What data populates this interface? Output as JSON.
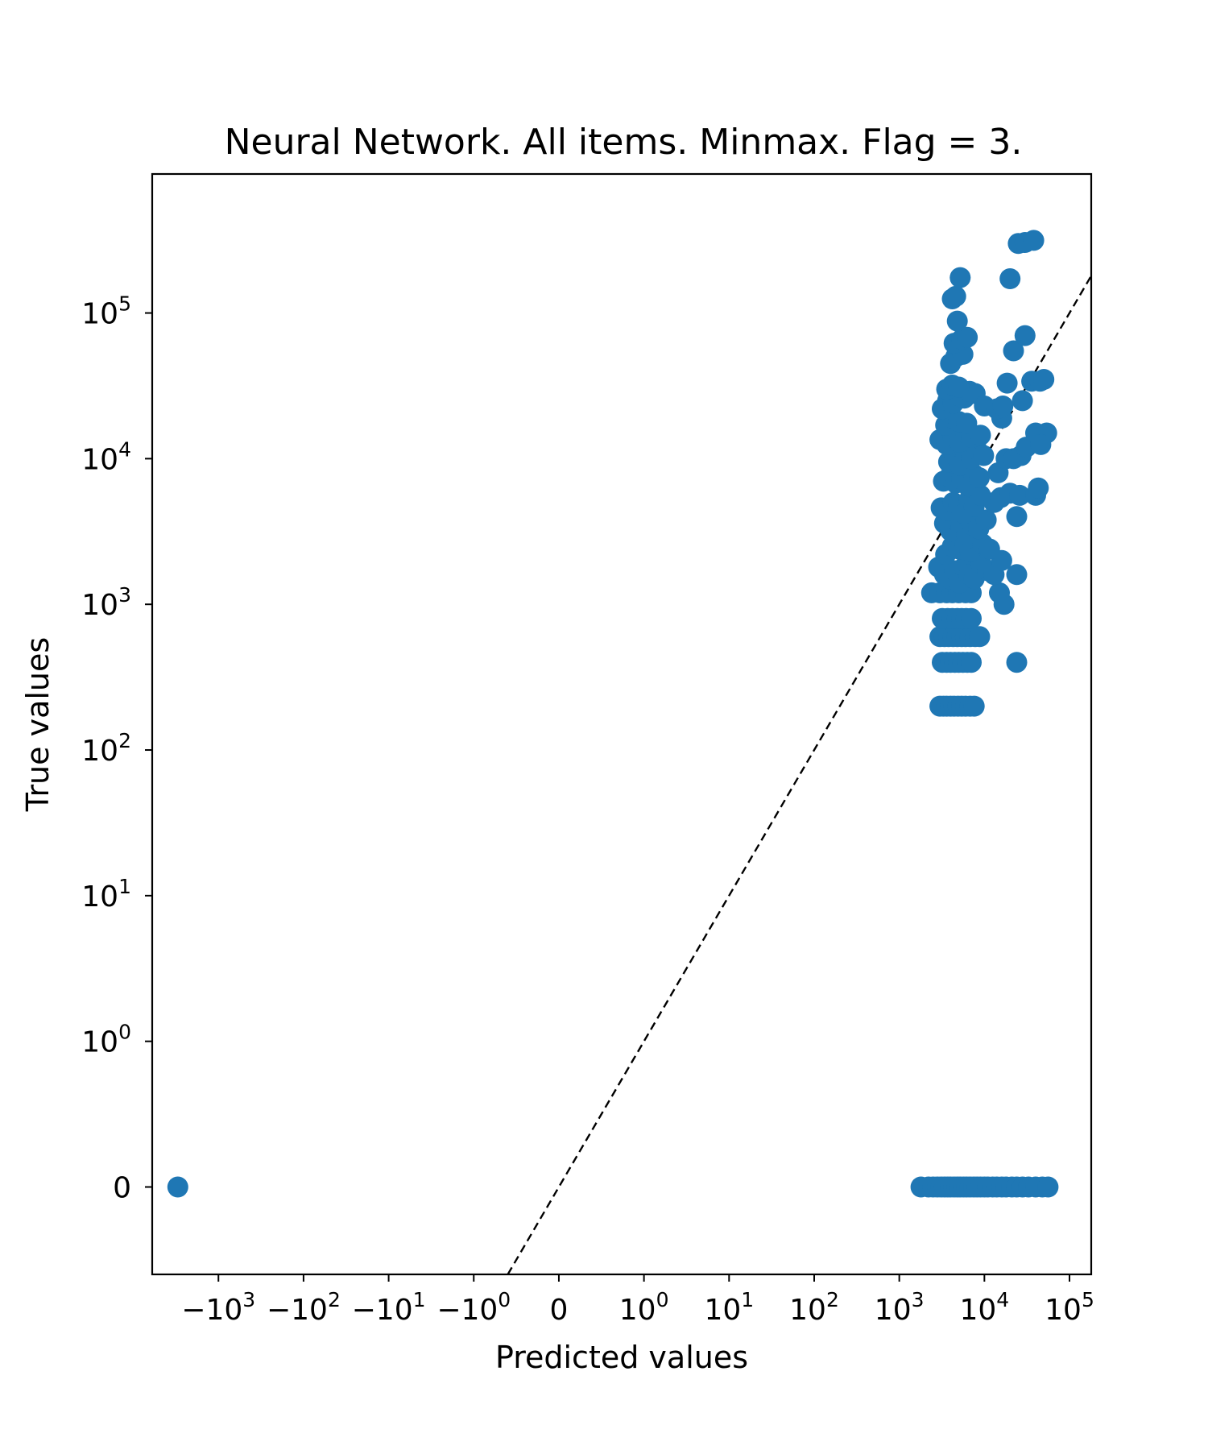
{
  "chart_data": {
    "type": "scatter",
    "title": "Neural Network. All items. Minmax. Flag = 3.",
    "xlabel": "Predicted values",
    "ylabel": "True values",
    "x_scale": "symlog",
    "y_scale": "symlog",
    "xlim": [
      -6000,
      180000
    ],
    "ylim": [
      -0.6,
      900000
    ],
    "grid": false,
    "legend": "none",
    "reference_line": "y = x (dashed)",
    "marker_color": "#1f77b4",
    "x_ticks": [
      {
        "base": "−10",
        "exp": "3",
        "value": -1000
      },
      {
        "base": "−10",
        "exp": "2",
        "value": -100
      },
      {
        "base": "−10",
        "exp": "1",
        "value": -10
      },
      {
        "base": "−10",
        "exp": "0",
        "value": -1
      },
      {
        "base": "0",
        "exp": "",
        "value": 0
      },
      {
        "base": "10",
        "exp": "0",
        "value": 1
      },
      {
        "base": "10",
        "exp": "1",
        "value": 10
      },
      {
        "base": "10",
        "exp": "2",
        "value": 100
      },
      {
        "base": "10",
        "exp": "3",
        "value": 1000
      },
      {
        "base": "10",
        "exp": "4",
        "value": 10000
      },
      {
        "base": "10",
        "exp": "5",
        "value": 100000
      }
    ],
    "y_ticks": [
      {
        "base": "0",
        "exp": "",
        "value": 0
      },
      {
        "base": "10",
        "exp": "0",
        "value": 1
      },
      {
        "base": "10",
        "exp": "1",
        "value": 10
      },
      {
        "base": "10",
        "exp": "2",
        "value": 100
      },
      {
        "base": "10",
        "exp": "3",
        "value": 1000
      },
      {
        "base": "10",
        "exp": "4",
        "value": 10000
      },
      {
        "base": "10",
        "exp": "5",
        "value": 100000
      }
    ],
    "points": [
      [
        -3000,
        0
      ],
      [
        1800,
        0
      ],
      [
        2200,
        0
      ],
      [
        2500,
        0
      ],
      [
        2800,
        0
      ],
      [
        3100,
        0
      ],
      [
        3400,
        0
      ],
      [
        3700,
        0
      ],
      [
        4000,
        0
      ],
      [
        4400,
        0
      ],
      [
        4800,
        0
      ],
      [
        5200,
        0
      ],
      [
        5700,
        0
      ],
      [
        6200,
        0
      ],
      [
        6800,
        0
      ],
      [
        7500,
        0
      ],
      [
        8200,
        0
      ],
      [
        9000,
        0
      ],
      [
        10000,
        0
      ],
      [
        11000,
        0
      ],
      [
        12500,
        0
      ],
      [
        14000,
        0
      ],
      [
        16000,
        0
      ],
      [
        18000,
        0
      ],
      [
        21000,
        0
      ],
      [
        24000,
        0
      ],
      [
        28000,
        0
      ],
      [
        33000,
        0
      ],
      [
        40000,
        0
      ],
      [
        48000,
        0
      ],
      [
        56000,
        0
      ],
      [
        3000,
        200
      ],
      [
        3300,
        200
      ],
      [
        3600,
        200
      ],
      [
        4000,
        200
      ],
      [
        4400,
        200
      ],
      [
        4900,
        200
      ],
      [
        5400,
        200
      ],
      [
        6000,
        200
      ],
      [
        6800,
        200
      ],
      [
        7600,
        200
      ],
      [
        3200,
        400
      ],
      [
        3600,
        400
      ],
      [
        4000,
        400
      ],
      [
        4500,
        400
      ],
      [
        5000,
        400
      ],
      [
        5600,
        400
      ],
      [
        6300,
        400
      ],
      [
        7000,
        400
      ],
      [
        24000,
        400
      ],
      [
        3000,
        600
      ],
      [
        3400,
        600
      ],
      [
        3800,
        600
      ],
      [
        4300,
        600
      ],
      [
        4800,
        600
      ],
      [
        5400,
        600
      ],
      [
        6000,
        600
      ],
      [
        6800,
        600
      ],
      [
        7800,
        600
      ],
      [
        8800,
        600
      ],
      [
        3200,
        800
      ],
      [
        3700,
        800
      ],
      [
        4200,
        800
      ],
      [
        4800,
        800
      ],
      [
        5400,
        800
      ],
      [
        6100,
        800
      ],
      [
        7000,
        800
      ],
      [
        2400,
        1200
      ],
      [
        3000,
        1200
      ],
      [
        3600,
        1200
      ],
      [
        4200,
        1200
      ],
      [
        5000,
        1200
      ],
      [
        6000,
        1200
      ],
      [
        7000,
        1200
      ],
      [
        15000,
        1200
      ],
      [
        17000,
        1000
      ],
      [
        2900,
        1800
      ],
      [
        3400,
        1600
      ],
      [
        3900,
        1500
      ],
      [
        4500,
        1700
      ],
      [
        5100,
        1400
      ],
      [
        5800,
        1800
      ],
      [
        6600,
        1600
      ],
      [
        7600,
        1500
      ],
      [
        9200,
        1900
      ],
      [
        11000,
        1700
      ],
      [
        13000,
        1600
      ],
      [
        16000,
        2000
      ],
      [
        24000,
        1600
      ],
      [
        3500,
        2200
      ],
      [
        4200,
        2500
      ],
      [
        5000,
        2400
      ],
      [
        5900,
        2600
      ],
      [
        6800,
        2300
      ],
      [
        8000,
        2800
      ],
      [
        9500,
        2600
      ],
      [
        11500,
        2400
      ],
      [
        3400,
        3600
      ],
      [
        4000,
        3200
      ],
      [
        4600,
        3800
      ],
      [
        5300,
        3400
      ],
      [
        6200,
        3000
      ],
      [
        7200,
        3500
      ],
      [
        8600,
        3300
      ],
      [
        10500,
        3800
      ],
      [
        24000,
        4000
      ],
      [
        3100,
        4600
      ],
      [
        3700,
        4400
      ],
      [
        4300,
        5000
      ],
      [
        5000,
        4800
      ],
      [
        5800,
        4200
      ],
      [
        6600,
        5200
      ],
      [
        7600,
        4700
      ],
      [
        9000,
        5600
      ],
      [
        13000,
        5000
      ],
      [
        15500,
        5400
      ],
      [
        20000,
        5800
      ],
      [
        26000,
        5600
      ],
      [
        40000,
        5600
      ],
      [
        3300,
        7000
      ],
      [
        3900,
        7500
      ],
      [
        4600,
        6800
      ],
      [
        5400,
        7200
      ],
      [
        6400,
        6500
      ],
      [
        7500,
        7800
      ],
      [
        8700,
        7400
      ],
      [
        14500,
        8000
      ],
      [
        43000,
        6300
      ],
      [
        3800,
        9500
      ],
      [
        4500,
        10500
      ],
      [
        5200,
        9000
      ],
      [
        6000,
        11000
      ],
      [
        7000,
        10000
      ],
      [
        8200,
        11500
      ],
      [
        9800,
        10500
      ],
      [
        18000,
        10000
      ],
      [
        22000,
        10000
      ],
      [
        27000,
        10500
      ],
      [
        31000,
        12000
      ],
      [
        3000,
        13500
      ],
      [
        3600,
        12500
      ],
      [
        4300,
        14000
      ],
      [
        5100,
        13000
      ],
      [
        6000,
        15000
      ],
      [
        7100,
        14000
      ],
      [
        9000,
        14500
      ],
      [
        3500,
        17000
      ],
      [
        4200,
        19000
      ],
      [
        5000,
        18000
      ],
      [
        6200,
        17500
      ],
      [
        16000,
        19000
      ],
      [
        3200,
        22000
      ],
      [
        3700,
        25000
      ],
      [
        4300,
        24000
      ],
      [
        5000,
        27000
      ],
      [
        5800,
        26000
      ],
      [
        6700,
        29000
      ],
      [
        7800,
        28000
      ],
      [
        10000,
        23000
      ],
      [
        14000,
        22000
      ],
      [
        16500,
        23000
      ],
      [
        28000,
        25000
      ],
      [
        3600,
        30000
      ],
      [
        4200,
        32000
      ],
      [
        5000,
        31000
      ],
      [
        18500,
        33000
      ],
      [
        36000,
        34000
      ],
      [
        45000,
        34000
      ],
      [
        50000,
        35000
      ],
      [
        40000,
        15000
      ],
      [
        54000,
        15000
      ],
      [
        46000,
        12500
      ],
      [
        4000,
        45000
      ],
      [
        4600,
        50000
      ],
      [
        5600,
        52000
      ],
      [
        22000,
        55000
      ],
      [
        30000,
        70000
      ],
      [
        4400,
        62000
      ],
      [
        5400,
        66000
      ],
      [
        6300,
        68000
      ],
      [
        4800,
        88000
      ],
      [
        4200,
        125000
      ],
      [
        4600,
        130000
      ],
      [
        5200,
        175000
      ],
      [
        20000,
        172000
      ],
      [
        25000,
        300000
      ],
      [
        30000,
        305000
      ],
      [
        38000,
        315000
      ]
    ]
  }
}
